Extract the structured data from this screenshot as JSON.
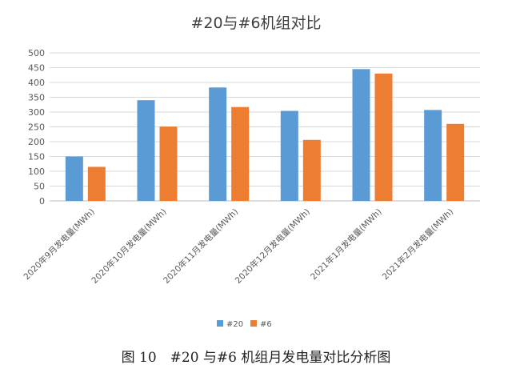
{
  "chart_data": {
    "type": "bar",
    "title": "#20与#6机组对比",
    "categories": [
      "2020年9月发电量(MWh)",
      "2020年10月发电量(MWh)",
      "2020年11月发电量(MWh)",
      "2020年12月发电量(MWh)",
      "2021年1月发电量(MWh)",
      "2021年2月发电量(MWh)"
    ],
    "series": [
      {
        "name": "#20",
        "color": "#5b9bd5",
        "values": [
          150,
          340,
          383,
          304,
          445,
          307
        ]
      },
      {
        "name": "#6",
        "color": "#ed7d31",
        "values": [
          115,
          251,
          317,
          206,
          430,
          260
        ]
      }
    ],
    "ylim": [
      0,
      500
    ],
    "yticks": [
      0,
      50,
      100,
      150,
      200,
      250,
      300,
      350,
      400,
      450,
      500
    ],
    "grid": true,
    "legend_position": "bottom"
  },
  "caption": "图 10　#20 与#6 机组月发电量对比分析图"
}
